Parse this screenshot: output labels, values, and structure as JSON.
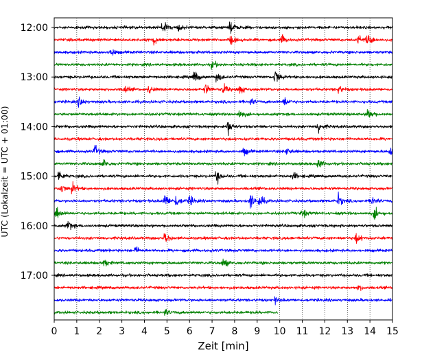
{
  "chart_data": {
    "type": "line",
    "subtype": "helicorder",
    "title": "",
    "xlabel": "Zeit  [min]",
    "ylabel": "UTC (Lokalzeit = UTC + 01:00)",
    "xlim": [
      0,
      15
    ],
    "x_ticks": [
      0,
      1,
      2,
      3,
      4,
      5,
      6,
      7,
      8,
      9,
      10,
      11,
      12,
      13,
      14,
      15
    ],
    "x_tick_labels": [
      "0",
      "1",
      "2",
      "3",
      "4",
      "5",
      "6",
      "7",
      "8",
      "9",
      "10",
      "11",
      "12",
      "13",
      "14",
      "15"
    ],
    "x_grid": "dotted",
    "y_tick_labels": [
      {
        "label": "12:00",
        "row": 0
      },
      {
        "label": "13:00",
        "row": 4
      },
      {
        "label": "14:00",
        "row": 8
      },
      {
        "label": "15:00",
        "row": 12
      },
      {
        "label": "16:00",
        "row": 16
      },
      {
        "label": "17:00",
        "row": 20
      }
    ],
    "trace_colors": [
      "#000000",
      "#ff0000",
      "#0000ff",
      "#008000"
    ],
    "rows": [
      {
        "start": "12:00",
        "color": "#000000",
        "end_min": 15,
        "events": [
          [
            4.8,
            9
          ],
          [
            7.8,
            7
          ],
          [
            5.5,
            4
          ]
        ]
      },
      {
        "start": "12:15",
        "color": "#ff0000",
        "end_min": 15,
        "events": [
          [
            4.4,
            6
          ],
          [
            7.8,
            5
          ],
          [
            10.1,
            5
          ],
          [
            13.9,
            9
          ],
          [
            13.5,
            5
          ]
        ]
      },
      {
        "start": "12:30",
        "color": "#0000ff",
        "end_min": 15,
        "events": [
          [
            2.5,
            6
          ]
        ]
      },
      {
        "start": "12:45",
        "color": "#008000",
        "end_min": 15,
        "events": [
          [
            7.0,
            5
          ]
        ]
      },
      {
        "start": "13:00",
        "color": "#000000",
        "end_min": 15,
        "events": [
          [
            6.2,
            8
          ],
          [
            7.2,
            6
          ],
          [
            9.8,
            10
          ]
        ]
      },
      {
        "start": "13:15",
        "color": "#ff0000",
        "end_min": 15,
        "events": [
          [
            3.1,
            5
          ],
          [
            4.2,
            5
          ],
          [
            6.7,
            6
          ],
          [
            7.5,
            6
          ],
          [
            8.2,
            6
          ],
          [
            12.6,
            5
          ]
        ]
      },
      {
        "start": "13:30",
        "color": "#0000ff",
        "end_min": 15,
        "events": [
          [
            1.1,
            6
          ],
          [
            10.2,
            6
          ],
          [
            8.7,
            4
          ]
        ]
      },
      {
        "start": "13:45",
        "color": "#008000",
        "end_min": 15,
        "events": [
          [
            8.2,
            5
          ],
          [
            13.9,
            9
          ]
        ]
      },
      {
        "start": "14:00",
        "color": "#000000",
        "end_min": 15,
        "events": [
          [
            7.7,
            9
          ],
          [
            11.7,
            7
          ]
        ]
      },
      {
        "start": "14:15",
        "color": "#ff0000",
        "end_min": 15,
        "events": []
      },
      {
        "start": "14:30",
        "color": "#0000ff",
        "end_min": 15,
        "events": [
          [
            1.8,
            7
          ],
          [
            8.4,
            5
          ],
          [
            10.3,
            5
          ],
          [
            14.9,
            5
          ]
        ]
      },
      {
        "start": "14:45",
        "color": "#008000",
        "end_min": 15,
        "events": [
          [
            2.2,
            5
          ],
          [
            11.7,
            6
          ]
        ]
      },
      {
        "start": "15:00",
        "color": "#000000",
        "end_min": 15,
        "events": [
          [
            0.2,
            7
          ],
          [
            7.2,
            8
          ],
          [
            10.6,
            4
          ]
        ]
      },
      {
        "start": "15:15",
        "color": "#ff0000",
        "end_min": 15,
        "events": [
          [
            0.3,
            6
          ],
          [
            0.8,
            7
          ]
        ]
      },
      {
        "start": "15:30",
        "color": "#0000ff",
        "end_min": 15,
        "events": [
          [
            4.9,
            9
          ],
          [
            5.4,
            7
          ],
          [
            6.0,
            6
          ],
          [
            8.7,
            9
          ],
          [
            9.1,
            7
          ],
          [
            12.6,
            7
          ],
          [
            14.1,
            6
          ]
        ]
      },
      {
        "start": "15:45",
        "color": "#008000",
        "end_min": 15,
        "events": [
          [
            0.1,
            8
          ],
          [
            11.0,
            5
          ],
          [
            14.2,
            7
          ]
        ]
      },
      {
        "start": "16:00",
        "color": "#000000",
        "end_min": 15,
        "events": [
          [
            0.6,
            7
          ]
        ]
      },
      {
        "start": "16:15",
        "color": "#ff0000",
        "end_min": 15,
        "events": [
          [
            4.9,
            8
          ],
          [
            13.4,
            6
          ]
        ]
      },
      {
        "start": "16:30",
        "color": "#0000ff",
        "end_min": 15,
        "events": [
          [
            3.6,
            4
          ]
        ]
      },
      {
        "start": "16:45",
        "color": "#008000",
        "end_min": 15,
        "events": [
          [
            2.2,
            5
          ],
          [
            7.5,
            6
          ]
        ]
      },
      {
        "start": "17:00",
        "color": "#000000",
        "end_min": 15,
        "events": []
      },
      {
        "start": "17:15",
        "color": "#ff0000",
        "end_min": 15,
        "events": [
          [
            13.5,
            3
          ]
        ]
      },
      {
        "start": "17:30",
        "color": "#0000ff",
        "end_min": 15,
        "events": [
          [
            9.8,
            3
          ]
        ]
      },
      {
        "start": "17:45",
        "color": "#008000",
        "end_min": 9.9,
        "events": [
          [
            4.9,
            4
          ]
        ]
      }
    ]
  }
}
